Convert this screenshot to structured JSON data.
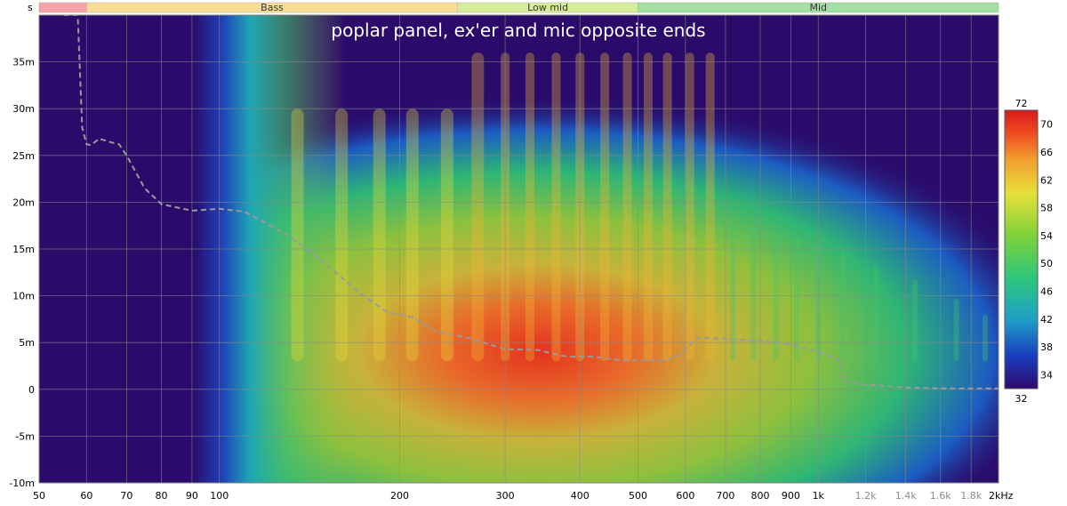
{
  "chart_data": {
    "type": "heatmap",
    "title": "poplar panel, ex'er and mic opposite ends",
    "y_unit_label": "s",
    "x_scale": "log",
    "x_range_hz": [
      50,
      2000
    ],
    "y_range_s": [
      -0.01,
      0.04
    ],
    "x_ticks": [
      {
        "value": 50,
        "label": "50",
        "major": true
      },
      {
        "value": 60,
        "label": "60",
        "major": true
      },
      {
        "value": 70,
        "label": "70",
        "major": true
      },
      {
        "value": 80,
        "label": "80",
        "major": true
      },
      {
        "value": 90,
        "label": "90",
        "major": true
      },
      {
        "value": 100,
        "label": "100",
        "major": true
      },
      {
        "value": 200,
        "label": "200",
        "major": true
      },
      {
        "value": 300,
        "label": "300",
        "major": true
      },
      {
        "value": 400,
        "label": "400",
        "major": true
      },
      {
        "value": 500,
        "label": "500",
        "major": true
      },
      {
        "value": 600,
        "label": "600",
        "major": true
      },
      {
        "value": 700,
        "label": "700",
        "major": true
      },
      {
        "value": 800,
        "label": "800",
        "major": true
      },
      {
        "value": 900,
        "label": "900",
        "major": true
      },
      {
        "value": 1000,
        "label": "1k",
        "major": true
      },
      {
        "value": 1200,
        "label": "1.2k",
        "major": false
      },
      {
        "value": 1400,
        "label": "1.4k",
        "major": false
      },
      {
        "value": 1600,
        "label": "1.6k",
        "major": false
      },
      {
        "value": 1800,
        "label": "1.8k",
        "major": false
      },
      {
        "value": 2000,
        "label": "2kHz",
        "major": true
      }
    ],
    "y_ticks": [
      {
        "value": 0.035,
        "label": "35m"
      },
      {
        "value": 0.03,
        "label": "30m"
      },
      {
        "value": 0.025,
        "label": "25m"
      },
      {
        "value": 0.02,
        "label": "20m"
      },
      {
        "value": 0.015,
        "label": "15m"
      },
      {
        "value": 0.01,
        "label": "10m"
      },
      {
        "value": 0.005,
        "label": "5m"
      },
      {
        "value": 0.0,
        "label": "0"
      },
      {
        "value": -0.005,
        "label": "-5m"
      },
      {
        "value": -0.01,
        "label": "-10m"
      }
    ],
    "bands": [
      {
        "label": "",
        "from_hz": 50,
        "to_hz": 60,
        "color": "#f4a3a8"
      },
      {
        "label": "Bass",
        "from_hz": 60,
        "to_hz": 250,
        "color": "#f8dd96"
      },
      {
        "label": "Low mid",
        "from_hz": 250,
        "to_hz": 500,
        "color": "#d5ec9b"
      },
      {
        "label": "Mid",
        "from_hz": 500,
        "to_hz": 2000,
        "color": "#a3e0a3"
      }
    ],
    "colorbar": {
      "min": 32,
      "max": 72,
      "ticks": [
        {
          "value": 70,
          "label": "70"
        },
        {
          "value": 66,
          "label": "66"
        },
        {
          "value": 62,
          "label": "62"
        },
        {
          "value": 58,
          "label": "58"
        },
        {
          "value": 54,
          "label": "54"
        },
        {
          "value": 50,
          "label": "50"
        },
        {
          "value": 46,
          "label": "46"
        },
        {
          "value": 42,
          "label": "42"
        },
        {
          "value": 38,
          "label": "38"
        },
        {
          "value": 34,
          "label": "34"
        }
      ],
      "min_label": "32",
      "max_label": "72"
    },
    "peak_ridge": {
      "label": "dashed curve",
      "points_hz_s": [
        [
          55,
          0.04
        ],
        [
          58,
          0.04
        ],
        [
          59,
          0.028
        ],
        [
          60,
          0.0262
        ],
        [
          61,
          0.0261
        ],
        [
          63,
          0.0268
        ],
        [
          66,
          0.0264
        ],
        [
          68,
          0.0262
        ],
        [
          70,
          0.025
        ],
        [
          75,
          0.0215
        ],
        [
          80,
          0.0198
        ],
        [
          90,
          0.0191
        ],
        [
          100,
          0.0193
        ],
        [
          110,
          0.019
        ],
        [
          130,
          0.0165
        ],
        [
          150,
          0.0135
        ],
        [
          170,
          0.0105
        ],
        [
          190,
          0.0083
        ],
        [
          210,
          0.0077
        ],
        [
          230,
          0.0062
        ],
        [
          260,
          0.0055
        ],
        [
          300,
          0.0043
        ],
        [
          340,
          0.0042
        ],
        [
          380,
          0.0035
        ],
        [
          420,
          0.0035
        ],
        [
          470,
          0.0031
        ],
        [
          520,
          0.0031
        ],
        [
          550,
          0.0031
        ],
        [
          580,
          0.0035
        ],
        [
          630,
          0.0055
        ],
        [
          700,
          0.0054
        ],
        [
          800,
          0.0052
        ],
        [
          900,
          0.0048
        ],
        [
          1000,
          0.004
        ],
        [
          1050,
          0.0035
        ],
        [
          1090,
          0.003
        ],
        [
          1100,
          0.0009
        ],
        [
          1200,
          0.0005
        ],
        [
          1400,
          0.0002
        ],
        [
          1600,
          0.0001
        ],
        [
          1800,
          0.0001
        ],
        [
          2000,
          0.0001
        ]
      ]
    },
    "grid": true
  }
}
